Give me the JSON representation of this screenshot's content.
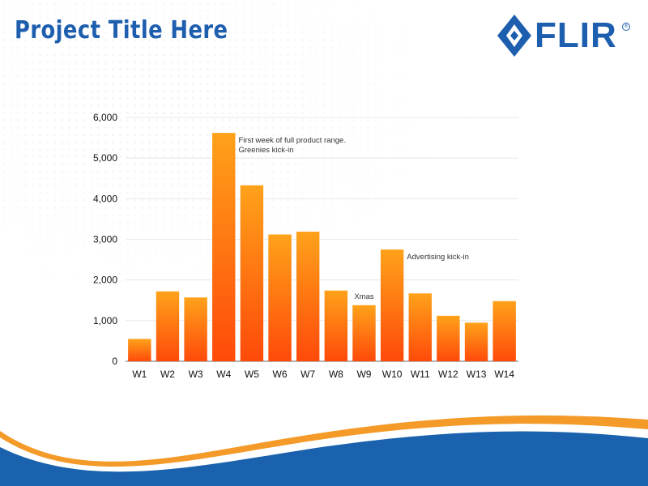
{
  "slide": {
    "title": "Project Title Here",
    "logo_text": "FLIR",
    "logo_mark": "®"
  },
  "colors": {
    "title_blue": "#1d5fae",
    "bar_top": "#ffa21a",
    "bar_bottom": "#ff4a0a",
    "wave_orange": "#f39a28",
    "wave_blue": "#1a62ad"
  },
  "chart_data": {
    "type": "bar",
    "title": "",
    "xlabel": "",
    "ylabel": "",
    "ylim": [
      0,
      6000
    ],
    "yticks": [
      0,
      1000,
      2000,
      3000,
      4000,
      5000,
      6000
    ],
    "ytick_labels": [
      "0",
      "1,000",
      "2,000",
      "3,000",
      "4,000",
      "5,000",
      "6,000"
    ],
    "grid": true,
    "categories": [
      "W1",
      "W2",
      "W3",
      "W4",
      "W5",
      "W6",
      "W7",
      "W8",
      "W9",
      "W10",
      "W11",
      "W12",
      "W13",
      "W14"
    ],
    "values": [
      550,
      1720,
      1570,
      5620,
      4330,
      3120,
      3190,
      1740,
      1380,
      2750,
      1670,
      1120,
      950,
      1480
    ],
    "annotations": [
      {
        "category": "W4",
        "lines": [
          "First week of full product range.",
          "Greenies kick-in"
        ]
      },
      {
        "category": "W9",
        "lines": [
          "Xmas"
        ]
      },
      {
        "category": "W10",
        "lines": [
          "Advertising kick-in"
        ]
      }
    ]
  }
}
